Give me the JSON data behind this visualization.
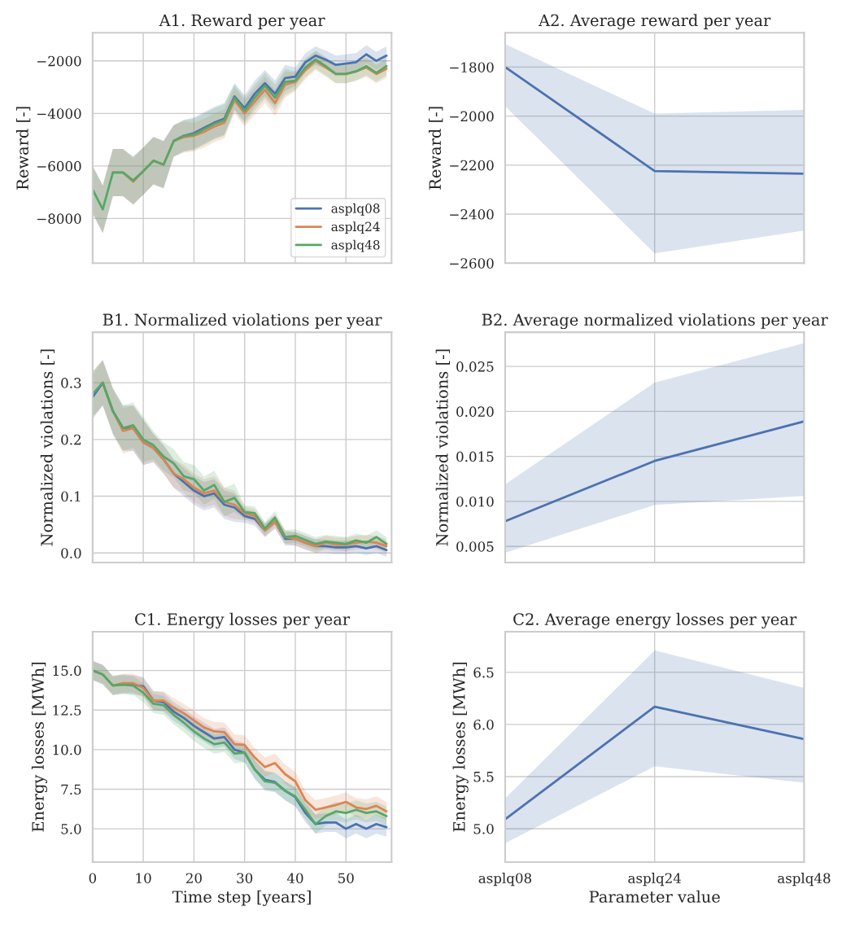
{
  "chart_data": [
    {
      "type": "line",
      "title": "A1. Reward per year",
      "ylabel": "Reward [-]",
      "x": [
        0,
        2,
        4,
        6,
        8,
        10,
        12,
        14,
        16,
        18,
        20,
        22,
        24,
        26,
        28,
        30,
        32,
        34,
        36,
        38,
        40,
        42,
        44,
        46,
        48,
        50,
        52,
        54,
        56,
        58
      ],
      "xlim": [
        0,
        59
      ],
      "xticks": [
        0,
        10,
        20,
        30,
        40,
        50
      ],
      "ylim": [
        -9700,
        -930
      ],
      "yticks": [
        {
          "value": -8000,
          "label": "−8000"
        },
        {
          "value": -6000,
          "label": "−6000"
        },
        {
          "value": -4000,
          "label": "−4000"
        },
        {
          "value": -2000,
          "label": "−2000"
        }
      ],
      "tick_labels": "y",
      "grid": true,
      "legend": "bottom right",
      "series": [
        {
          "name": "asplq08",
          "color": "#4c72b0",
          "values": [
            null,
            null,
            null,
            null,
            null,
            null,
            null,
            null,
            -5050,
            -4850,
            -4750,
            -4550,
            -4350,
            -4200,
            -3350,
            -3800,
            -3250,
            -2850,
            -3250,
            -2650,
            -2600,
            -2050,
            -1800,
            -1950,
            -2150,
            -2100,
            -2050,
            -1750,
            -2000,
            -1800
          ],
          "lower": [
            -7800,
            -8550,
            -7150,
            -7150,
            -7450,
            -7100,
            -6700,
            -6850,
            -5650,
            -5450,
            -5350,
            -5150,
            -4950,
            -4800,
            -3850,
            -4300,
            -3750,
            -3350,
            -3750,
            -3150,
            -2950,
            -2400,
            -2150,
            -2300,
            -2500,
            -2450,
            -2400,
            -2100,
            -2350,
            -2150
          ],
          "upper": [
            -6000,
            -6750,
            -5350,
            -5350,
            -5650,
            -5300,
            -4900,
            -5050,
            -4450,
            -4250,
            -4150,
            -3950,
            -3750,
            -3600,
            -2850,
            -3300,
            -2750,
            -2350,
            -2750,
            -2150,
            -2250,
            -1700,
            -1450,
            -1600,
            -1800,
            -1750,
            -1700,
            -1400,
            -1650,
            -1450
          ]
        },
        {
          "name": "asplq24",
          "color": "#dd8452",
          "values": [
            null,
            null,
            -6250,
            -6250,
            -6600,
            -6200,
            -5800,
            -5950,
            -5050,
            -4900,
            -4850,
            -4700,
            -4500,
            -4350,
            -3500,
            -4000,
            -3550,
            -3100,
            -3600,
            -2900,
            -2800,
            -2350,
            -2000,
            -2250,
            -2500,
            -2500,
            -2400,
            -2250,
            -2500,
            -2300
          ],
          "lower": [
            -7800,
            -8550,
            -7150,
            -7150,
            -7500,
            -7100,
            -6700,
            -6850,
            -5650,
            -5500,
            -5450,
            -5300,
            -5100,
            -4950,
            -4000,
            -4500,
            -4050,
            -3600,
            -4100,
            -3400,
            -3150,
            -2700,
            -2350,
            -2600,
            -2850,
            -2850,
            -2750,
            -2600,
            -2850,
            -2650
          ],
          "upper": [
            -6000,
            -6750,
            -5350,
            -5350,
            -5700,
            -5300,
            -4900,
            -5050,
            -4450,
            -4300,
            -4350,
            -4200,
            -4000,
            -3850,
            -3000,
            -3500,
            -3050,
            -2600,
            -3100,
            -2400,
            -2450,
            -2000,
            -1650,
            -1900,
            -2150,
            -2150,
            -2050,
            -1900,
            -2150,
            -1950
          ]
        },
        {
          "name": "asplq48",
          "color": "#55a868",
          "values": [
            -6900,
            -7650,
            -6250,
            -6250,
            -6550,
            -6200,
            -5800,
            -5950,
            -5050,
            -4850,
            -4800,
            -4600,
            -4400,
            -4250,
            -3400,
            -3900,
            -3400,
            -2950,
            -3400,
            -2800,
            -2750,
            -2250,
            -1950,
            -2200,
            -2500,
            -2500,
            -2400,
            -2200,
            -2450,
            -2200
          ],
          "lower": [
            -7800,
            -8550,
            -7150,
            -7150,
            -7450,
            -7100,
            -6700,
            -6850,
            -5650,
            -5450,
            -5400,
            -5200,
            -5000,
            -4850,
            -3900,
            -4400,
            -3900,
            -3450,
            -3900,
            -3300,
            -3100,
            -2600,
            -2300,
            -2550,
            -2850,
            -2850,
            -2750,
            -2550,
            -2800,
            -2550
          ],
          "upper": [
            -6000,
            -6750,
            -5350,
            -5350,
            -5650,
            -5300,
            -4900,
            -5050,
            -4450,
            -4250,
            -4200,
            -4000,
            -3800,
            -3650,
            -2900,
            -3400,
            -2900,
            -2450,
            -2900,
            -2300,
            -2400,
            -1900,
            -1600,
            -1850,
            -2150,
            -2150,
            -2050,
            -1850,
            -2100,
            -1850
          ]
        }
      ]
    },
    {
      "type": "line",
      "title": "A2. Average reward per year",
      "ylabel": "Reward [-]",
      "categories": [
        null,
        null,
        null
      ],
      "ylim": [
        -2600,
        -1660
      ],
      "yticks": [
        {
          "value": -2600,
          "label": "−2600"
        },
        {
          "value": -2400,
          "label": "−2400"
        },
        {
          "value": -2200,
          "label": "−2200"
        },
        {
          "value": -2000,
          "label": "−2000"
        },
        {
          "value": -1800,
          "label": "−1800"
        }
      ],
      "tick_labels": "y",
      "grid": true,
      "series": [
        {
          "color": "#4c72b0",
          "values": [
            -1800,
            -2224,
            -2235
          ],
          "lower": [
            -1960,
            -2560,
            -2467
          ],
          "upper": [
            -1706,
            -1990,
            -1975
          ]
        }
      ]
    },
    {
      "type": "line",
      "title": "B1. Normalized violations per year",
      "ylabel": "Normalized violations [-]",
      "x": [
        0,
        2,
        4,
        6,
        8,
        10,
        12,
        14,
        16,
        18,
        20,
        22,
        24,
        26,
        28,
        30,
        32,
        34,
        36,
        38,
        40,
        42,
        44,
        46,
        48,
        50,
        52,
        54,
        56,
        58
      ],
      "xlim": [
        0,
        59
      ],
      "xticks": [
        0,
        10,
        20,
        30,
        40,
        50
      ],
      "ylim": [
        -0.017,
        0.389
      ],
      "yticks": [
        {
          "value": 0.0,
          "label": "0.0"
        },
        {
          "value": 0.1,
          "label": "0.1"
        },
        {
          "value": 0.2,
          "label": "0.2"
        },
        {
          "value": 0.3,
          "label": "0.3"
        }
      ],
      "tick_labels": "y",
      "grid": true,
      "series": [
        {
          "color": "#4c72b0",
          "values": [
            0.275,
            0.3,
            0.25,
            0.22,
            0.22,
            0.195,
            0.185,
            0.165,
            0.14,
            0.125,
            0.11,
            0.1,
            0.105,
            0.085,
            0.08,
            0.065,
            0.06,
            0.04,
            0.055,
            0.025,
            0.025,
            0.018,
            0.012,
            0.012,
            0.01,
            0.01,
            0.012,
            0.008,
            0.012,
            0.005
          ],
          "lower": [
            0.235,
            0.26,
            0.21,
            0.18,
            0.18,
            0.155,
            0.16,
            0.14,
            0.115,
            0.1,
            0.085,
            0.075,
            0.08,
            0.06,
            0.055,
            0.053,
            0.048,
            0.028,
            0.043,
            0.013,
            0.013,
            0.006,
            0.0,
            0.0,
            -0.002,
            -0.002,
            0.0,
            -0.004,
            0.0,
            -0.007
          ],
          "upper": [
            0.315,
            0.34,
            0.29,
            0.26,
            0.26,
            0.235,
            0.21,
            0.19,
            0.165,
            0.15,
            0.135,
            0.125,
            0.13,
            0.11,
            0.105,
            0.077,
            0.072,
            0.052,
            0.067,
            0.037,
            0.037,
            0.03,
            0.024,
            0.024,
            0.022,
            0.022,
            0.024,
            0.02,
            0.024,
            0.017
          ]
        },
        {
          "color": "#dd8452",
          "values": [
            null,
            0.3,
            0.25,
            0.215,
            0.22,
            0.195,
            0.185,
            0.165,
            0.14,
            0.13,
            0.115,
            0.105,
            0.11,
            0.09,
            0.085,
            0.07,
            0.065,
            0.04,
            0.055,
            0.028,
            0.025,
            0.018,
            0.012,
            0.018,
            0.015,
            0.015,
            0.018,
            0.02,
            0.018,
            0.012
          ],
          "lower": [
            0.24,
            0.26,
            0.21,
            0.175,
            0.18,
            0.155,
            0.16,
            0.14,
            0.115,
            0.105,
            0.09,
            0.08,
            0.085,
            0.065,
            0.06,
            0.058,
            0.053,
            0.028,
            0.043,
            0.016,
            0.013,
            0.006,
            0.0,
            0.006,
            0.003,
            0.003,
            0.006,
            0.008,
            0.006,
            0.0
          ],
          "upper": [
            0.32,
            0.34,
            0.29,
            0.255,
            0.26,
            0.235,
            0.21,
            0.19,
            0.165,
            0.155,
            0.14,
            0.13,
            0.135,
            0.115,
            0.11,
            0.082,
            0.077,
            0.052,
            0.067,
            0.04,
            0.037,
            0.03,
            0.024,
            0.03,
            0.027,
            0.027,
            0.03,
            0.032,
            0.03,
            0.024
          ]
        },
        {
          "color": "#55a868",
          "values": [
            0.28,
            0.3,
            0.25,
            0.22,
            0.225,
            0.2,
            0.19,
            0.17,
            0.158,
            0.135,
            0.13,
            0.11,
            0.12,
            0.09,
            0.097,
            0.072,
            0.07,
            0.043,
            0.062,
            0.028,
            0.03,
            0.023,
            0.016,
            0.02,
            0.018,
            0.016,
            0.022,
            0.018,
            0.028,
            0.016
          ],
          "lower": [
            0.24,
            0.26,
            0.21,
            0.18,
            0.185,
            0.16,
            0.165,
            0.145,
            0.133,
            0.11,
            0.105,
            0.085,
            0.095,
            0.065,
            0.072,
            0.06,
            0.058,
            0.031,
            0.05,
            0.016,
            0.018,
            0.011,
            0.004,
            0.008,
            0.006,
            0.004,
            0.01,
            0.006,
            0.016,
            0.004
          ],
          "upper": [
            0.32,
            0.34,
            0.29,
            0.26,
            0.265,
            0.24,
            0.215,
            0.195,
            0.183,
            0.16,
            0.155,
            0.135,
            0.145,
            0.115,
            0.122,
            0.084,
            0.082,
            0.055,
            0.074,
            0.04,
            0.042,
            0.035,
            0.028,
            0.032,
            0.03,
            0.028,
            0.034,
            0.03,
            0.04,
            0.028
          ]
        }
      ]
    },
    {
      "type": "line",
      "title": "B2. Average normalized violations per year",
      "ylabel": "Normalized violations [-]",
      "categories": [
        null,
        null,
        null
      ],
      "ylim": [
        0.0032,
        0.0288
      ],
      "yticks": [
        {
          "value": 0.005,
          "label": "0.005"
        },
        {
          "value": 0.01,
          "label": "0.010"
        },
        {
          "value": 0.015,
          "label": "0.015"
        },
        {
          "value": 0.02,
          "label": "0.020"
        },
        {
          "value": 0.025,
          "label": "0.025"
        }
      ],
      "tick_labels": "y",
      "grid": true,
      "series": [
        {
          "color": "#4c72b0",
          "values": [
            0.0078,
            0.0145,
            0.0189
          ],
          "lower": [
            0.0043,
            0.0096,
            0.0106
          ],
          "upper": [
            0.0119,
            0.0232,
            0.0276
          ]
        }
      ]
    },
    {
      "type": "line",
      "title": "C1. Energy losses per year",
      "xlabel": "Time step [years]",
      "ylabel": "Energy losses [MWh]",
      "x": [
        0,
        2,
        4,
        6,
        8,
        10,
        12,
        14,
        16,
        18,
        20,
        22,
        24,
        26,
        28,
        30,
        32,
        34,
        36,
        38,
        40,
        42,
        44,
        46,
        48,
        50,
        52,
        54,
        56,
        58
      ],
      "xlim": [
        0,
        59
      ],
      "xticks": [
        0,
        10,
        20,
        30,
        40,
        50
      ],
      "ylim": [
        2.9,
        17.45
      ],
      "yticks": [
        {
          "value": 5.0,
          "label": "5.0"
        },
        {
          "value": 7.5,
          "label": "7.5"
        },
        {
          "value": 10.0,
          "label": "10.0"
        },
        {
          "value": 12.5,
          "label": "12.5"
        },
        {
          "value": 15.0,
          "label": "15.0"
        }
      ],
      "grid": true,
      "series": [
        {
          "color": "#4c72b0",
          "values": [
            null,
            null,
            null,
            14.15,
            14.1,
            14.0,
            13.1,
            13.0,
            12.4,
            12.0,
            11.5,
            11.1,
            10.7,
            10.8,
            10.0,
            9.8,
            8.75,
            8.1,
            7.95,
            7.4,
            7.0,
            6.0,
            5.3,
            5.4,
            5.4,
            5.0,
            5.3,
            5.0,
            5.3,
            5.1
          ],
          "lower": [
            14.4,
            14.15,
            13.45,
            13.55,
            13.5,
            13.4,
            12.5,
            12.4,
            11.8,
            11.4,
            10.9,
            10.5,
            10.1,
            10.2,
            9.4,
            9.2,
            8.15,
            7.5,
            7.35,
            6.8,
            6.4,
            5.4,
            4.7,
            4.8,
            4.8,
            4.4,
            4.7,
            4.4,
            4.7,
            4.5
          ],
          "upper": [
            15.6,
            15.35,
            14.65,
            14.75,
            14.7,
            14.6,
            13.7,
            13.6,
            13.0,
            12.6,
            12.1,
            11.7,
            11.3,
            11.4,
            10.6,
            10.4,
            9.35,
            8.7,
            8.55,
            8.0,
            7.6,
            6.6,
            5.9,
            6.0,
            6.0,
            5.6,
            5.9,
            5.6,
            5.9,
            5.7
          ]
        },
        {
          "color": "#dd8452",
          "values": [
            15.0,
            14.75,
            14.05,
            14.2,
            14.2,
            13.9,
            13.1,
            13.1,
            12.65,
            12.3,
            11.85,
            11.4,
            11.15,
            11.1,
            10.35,
            10.3,
            9.5,
            8.9,
            9.15,
            8.45,
            8.0,
            6.8,
            6.2,
            6.35,
            6.5,
            6.7,
            6.35,
            6.25,
            6.45,
            6.1
          ],
          "lower": [
            14.4,
            14.15,
            13.45,
            13.6,
            13.6,
            13.3,
            12.5,
            12.5,
            12.05,
            11.7,
            11.25,
            10.8,
            10.55,
            10.5,
            9.75,
            9.7,
            8.9,
            8.3,
            8.55,
            7.85,
            7.4,
            6.2,
            5.6,
            5.75,
            5.9,
            6.1,
            5.75,
            5.65,
            5.85,
            5.5
          ],
          "upper": [
            15.6,
            15.35,
            14.65,
            14.8,
            14.8,
            14.5,
            13.7,
            13.7,
            13.25,
            12.9,
            12.45,
            12.0,
            11.75,
            11.7,
            10.95,
            10.9,
            10.1,
            9.5,
            9.75,
            9.05,
            8.6,
            7.4,
            6.8,
            6.95,
            7.1,
            7.3,
            6.95,
            6.85,
            7.05,
            6.7
          ]
        },
        {
          "color": "#55a868",
          "values": [
            15.0,
            14.75,
            14.05,
            14.1,
            14.05,
            13.6,
            12.9,
            12.8,
            12.2,
            11.7,
            11.15,
            10.7,
            10.35,
            10.45,
            9.75,
            9.8,
            8.75,
            8.0,
            7.9,
            7.4,
            7.05,
            6.2,
            5.3,
            5.8,
            6.1,
            6.0,
            6.2,
            6.0,
            6.1,
            5.8
          ],
          "lower": [
            14.4,
            14.15,
            13.45,
            13.5,
            13.45,
            13.0,
            12.3,
            12.2,
            11.6,
            11.1,
            10.55,
            10.1,
            9.75,
            9.85,
            9.15,
            9.2,
            8.15,
            7.4,
            7.3,
            6.8,
            6.45,
            5.6,
            4.7,
            5.2,
            5.5,
            5.4,
            5.6,
            5.4,
            5.5,
            5.2
          ],
          "upper": [
            15.6,
            15.35,
            14.65,
            14.7,
            14.65,
            14.2,
            13.5,
            13.4,
            12.8,
            12.3,
            11.75,
            11.3,
            10.95,
            11.05,
            10.35,
            10.4,
            9.35,
            8.6,
            8.5,
            8.0,
            7.65,
            6.8,
            5.9,
            6.4,
            6.7,
            6.6,
            6.8,
            6.6,
            6.7,
            6.4
          ]
        }
      ]
    },
    {
      "type": "line",
      "title": "C2. Average energy losses per year",
      "xlabel": "Parameter value",
      "ylabel": "Energy losses [MWh]",
      "categories": [
        "asplq08",
        "asplq24",
        "asplq48"
      ],
      "ylim": [
        4.68,
        6.89
      ],
      "yticks": [
        {
          "value": 5.0,
          "label": "5.0"
        },
        {
          "value": 5.5,
          "label": "5.5"
        },
        {
          "value": 6.0,
          "label": "6.0"
        },
        {
          "value": 6.5,
          "label": "6.5"
        }
      ],
      "grid": true,
      "series": [
        {
          "color": "#4c72b0",
          "values": [
            5.09,
            6.17,
            5.86
          ],
          "lower": [
            4.86,
            5.6,
            5.44
          ],
          "upper": [
            5.29,
            6.71,
            6.35
          ]
        }
      ]
    }
  ]
}
